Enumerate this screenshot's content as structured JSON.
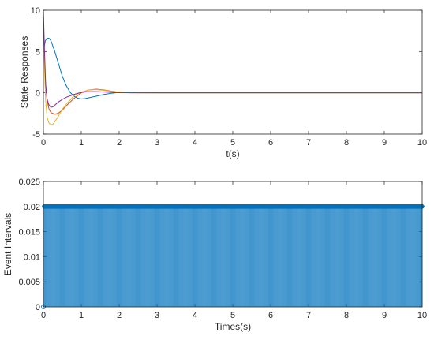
{
  "chart_data": [
    {
      "type": "line",
      "xlabel": "t(s)",
      "ylabel": "State Responses",
      "xlim": [
        0,
        10
      ],
      "ylim": [
        -5,
        10
      ],
      "xticks": [
        0,
        1,
        2,
        3,
        4,
        5,
        6,
        7,
        8,
        9,
        10
      ],
      "xtick_labels": [
        "0",
        "1",
        "2",
        "3",
        "4",
        "5",
        "6",
        "7",
        "8",
        "9",
        "10"
      ],
      "yticks": [
        -5,
        0,
        5,
        10
      ],
      "ytick_labels": [
        "-5",
        "0",
        "5",
        "10"
      ],
      "grid": false,
      "series": [
        {
          "color": "#0072BD",
          "x": [
            0,
            0.05,
            0.1,
            0.15,
            0.2,
            0.3,
            0.4,
            0.5,
            0.6,
            0.7,
            0.8,
            0.9,
            1.0,
            1.1,
            1.2,
            1.4,
            1.6,
            1.8,
            2.0,
            2.2,
            2.5,
            3.0,
            4.0,
            10.0
          ],
          "y": [
            5.0,
            6.3,
            6.6,
            6.6,
            6.3,
            5.0,
            3.5,
            2.0,
            0.9,
            0.1,
            -0.4,
            -0.65,
            -0.75,
            -0.7,
            -0.6,
            -0.4,
            -0.2,
            -0.05,
            0.05,
            0.05,
            0.02,
            0.0,
            0.0,
            0.0
          ]
        },
        {
          "color": "#D95319",
          "x": [
            0,
            0.02,
            0.05,
            0.1,
            0.15,
            0.2,
            0.3,
            0.4,
            0.5,
            0.6,
            0.8,
            1.0,
            1.2,
            1.4,
            1.6,
            1.8,
            2.0,
            2.2,
            2.5,
            3.0,
            10.0
          ],
          "y": [
            9.0,
            5.0,
            1.5,
            -1.0,
            -2.0,
            -2.4,
            -2.6,
            -2.45,
            -2.1,
            -1.6,
            -0.7,
            0.0,
            0.35,
            0.45,
            0.35,
            0.2,
            0.08,
            0.02,
            0.0,
            0.0,
            0.0
          ]
        },
        {
          "color": "#EDB120",
          "x": [
            0,
            0.03,
            0.06,
            0.1,
            0.15,
            0.2,
            0.25,
            0.3,
            0.4,
            0.5,
            0.6,
            0.8,
            1.0,
            1.2,
            1.4,
            1.6,
            1.8,
            2.0,
            2.3,
            2.6,
            3.0,
            10.0
          ],
          "y": [
            8.0,
            3.0,
            -1.0,
            -3.0,
            -3.7,
            -3.85,
            -3.8,
            -3.5,
            -2.8,
            -2.0,
            -1.4,
            -0.4,
            0.1,
            0.35,
            0.4,
            0.3,
            0.15,
            0.05,
            0.0,
            0.0,
            0.0,
            0.0
          ]
        },
        {
          "color": "#7E2F8E",
          "x": [
            0,
            0.03,
            0.06,
            0.1,
            0.15,
            0.2,
            0.25,
            0.3,
            0.4,
            0.5,
            0.6,
            0.8,
            1.0,
            1.2,
            1.4,
            1.6,
            1.8,
            2.0,
            2.3,
            2.6,
            3.0,
            10.0
          ],
          "y": [
            10.0,
            5.0,
            1.0,
            -0.8,
            -1.5,
            -1.75,
            -1.7,
            -1.5,
            -1.1,
            -0.8,
            -0.55,
            -0.2,
            0.05,
            0.15,
            0.15,
            0.1,
            0.05,
            0.02,
            0.0,
            0.0,
            0.0,
            0.0
          ]
        }
      ]
    },
    {
      "type": "stem",
      "xlabel": "Times(s)",
      "ylabel": "Event Intervals",
      "xlim": [
        0,
        10
      ],
      "ylim": [
        0,
        0.025
      ],
      "xticks": [
        0,
        1,
        2,
        3,
        4,
        5,
        6,
        7,
        8,
        9,
        10
      ],
      "xtick_labels": [
        "0",
        "1",
        "2",
        "3",
        "4",
        "5",
        "6",
        "7",
        "8",
        "9",
        "10"
      ],
      "yticks": [
        0,
        0.005,
        0.01,
        0.015,
        0.02,
        0.025
      ],
      "ytick_labels": [
        "0",
        "0.005",
        "0.01",
        "0.015",
        "0.02",
        "0.025"
      ],
      "grid": false,
      "color": "#0072BD",
      "start": 0,
      "step": 0.02,
      "end": 10,
      "interval": 0.02,
      "first_value": 0
    }
  ]
}
